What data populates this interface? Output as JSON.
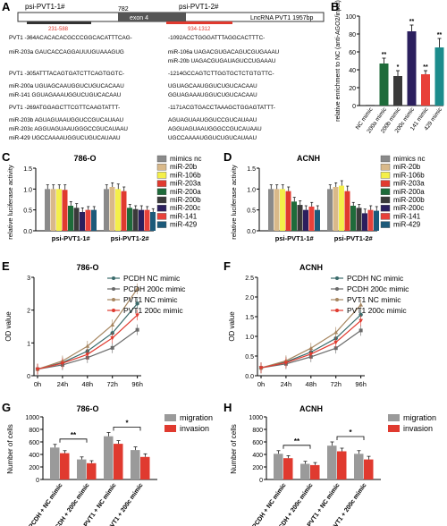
{
  "panels": {
    "A": "A",
    "B": "B",
    "C": "C",
    "D": "D",
    "E": "E",
    "F": "F",
    "G": "G",
    "H": "H"
  },
  "panelA": {
    "pos_labels": {
      "p1": "psi-PVT1-1#",
      "p2": "psi-PVT1-2#"
    },
    "numbers": {
      "n782": "782",
      "n1082": "1082",
      "exon": "exon 4",
      "lnc": "LncRNA PVT1 1957bp",
      "r1": "231-588",
      "r2": "934-1312"
    },
    "rows": [
      {
        "left": "PVT1  -364ACACACACGCCCGGCACATTTCAG-",
        "right": "-1092ACCTGGGATTTAGGCACTTTC-"
      },
      {
        "left": "miR-203a   GAUCACCAGGAUUUGUAAAGUG",
        "right": "miR-106a  UAGACGUGACAGUCGUGAAAU"
      },
      {
        "left": "",
        "right": "miR-20b   UAGACGUGAUAGUCCUGAAAU"
      },
      {
        "left": "PVT1  -305ATTTACAGTGATCTTCAGTGGTC-",
        "right": "-1214GCCAGTCTTGGTGCTCTGTGTTC-"
      },
      {
        "left": "miR-200a   UGUAGCAAUGGUCUGUCACAAU",
        "right": "UGUAGCAAUGGUCUGUCACAAU"
      },
      {
        "left": "miR-141    GGUAGAAAUGGUCUGUCACAAU",
        "right": "GGUAGAAAUGGUCUGUCACAAU"
      },
      {
        "left": "PVT1  -269ATGGAGCTTCGTTCAAGTATTT-",
        "right": "-1171ACGTGACCTAAAGCTGGAGTATTT-"
      },
      {
        "left": "miR-203b   AGUAGUAAUGGUCCGUCAUAAU",
        "right": "AGUAGUAAUGGUCCGUCAUAAU"
      },
      {
        "left": "miR-203c   AGGUAGUAAUGGGCCGUCAUAAU",
        "right": "AGGUAGUAAUGGGCCGUCAUAAU"
      },
      {
        "left": "miR-429    UGCCAAAAUGGUCUGUCAUAAU",
        "right": "UGCCAAAAUGGUCUGUCAUAAU"
      }
    ]
  },
  "chart_data": [
    {
      "id": "B",
      "type": "bar",
      "ylabel": "relative enrichment to NC (anti-AGO2/input)",
      "ylim": [
        0,
        100
      ],
      "yticks": [
        0,
        20,
        40,
        60,
        80,
        100
      ],
      "categories": [
        "NC mimic",
        "200a mimic",
        "200b mimic",
        "200c mimic",
        "141 mimic",
        "429 mimic"
      ],
      "values": [
        1,
        47,
        33,
        83,
        35,
        65
      ],
      "errors": [
        0,
        6,
        6,
        7,
        4,
        10
      ],
      "sig": [
        "",
        "**",
        "*",
        "**",
        "**",
        "**"
      ],
      "colors": [
        "#6b6b6b",
        "#1e6b3a",
        "#3a3a3a",
        "#2b1f5e",
        "#e8413a",
        "#1c8c8c"
      ]
    },
    {
      "id": "C",
      "type": "bar",
      "title": "786-O",
      "ylabel": "relative luciferase activity",
      "ylim": [
        0,
        1.5
      ],
      "yticks": [
        "0.0",
        "0.5",
        "1.0",
        "1.5"
      ],
      "groups": [
        "psi-PVT1-1#",
        "psi-PVT1-2#"
      ],
      "series": [
        {
          "name": "mimics nc",
          "color": "#8a8a8a",
          "values": [
            1.0,
            1.0
          ],
          "errors": [
            0.1,
            0.1
          ]
        },
        {
          "name": "miR-20b",
          "color": "#d9b98a",
          "values": [
            1.0,
            1.05
          ],
          "errors": [
            0.1,
            0.1
          ]
        },
        {
          "name": "miR-106b",
          "color": "#f4ef4a",
          "values": [
            1.0,
            1.0
          ],
          "errors": [
            0.1,
            0.12
          ]
        },
        {
          "name": "miR-203a",
          "color": "#e03a2f",
          "values": [
            0.98,
            0.95
          ],
          "errors": [
            0.12,
            0.1
          ]
        },
        {
          "name": "miR-200a",
          "color": "#1e6b3a",
          "values": [
            0.6,
            0.55
          ],
          "errors": [
            0.1,
            0.08
          ]
        },
        {
          "name": "miR-200b",
          "color": "#3a3a3a",
          "values": [
            0.55,
            0.52
          ],
          "errors": [
            0.1,
            0.08
          ]
        },
        {
          "name": "miR-200c",
          "color": "#2b1f5e",
          "values": [
            0.45,
            0.5
          ],
          "errors": [
            0.1,
            0.1
          ]
        },
        {
          "name": "miR-141",
          "color": "#e8413a",
          "values": [
            0.5,
            0.5
          ],
          "errors": [
            0.08,
            0.08
          ]
        },
        {
          "name": "miR-429",
          "color": "#1c5a7a",
          "values": [
            0.5,
            0.45
          ],
          "errors": [
            0.08,
            0.08
          ]
        }
      ]
    },
    {
      "id": "D",
      "type": "bar",
      "title": "ACNH",
      "ylabel": "relative luciferase activity",
      "ylim": [
        0,
        1.5
      ],
      "yticks": [
        "0.0",
        "0.5",
        "1.0",
        "1.5"
      ],
      "groups": [
        "psi-PVT1-1#",
        "psi-PVT1-2#"
      ],
      "series": [
        {
          "name": "mimics nc",
          "color": "#8a8a8a",
          "values": [
            1.0,
            1.0
          ],
          "errors": [
            0.1,
            0.1
          ]
        },
        {
          "name": "miR-20b",
          "color": "#d9b98a",
          "values": [
            1.0,
            1.05
          ],
          "errors": [
            0.1,
            0.1
          ]
        },
        {
          "name": "miR-106b",
          "color": "#f4ef4a",
          "values": [
            1.0,
            1.08
          ],
          "errors": [
            0.1,
            0.12
          ]
        },
        {
          "name": "miR-203a",
          "color": "#e03a2f",
          "values": [
            0.95,
            0.95
          ],
          "errors": [
            0.1,
            0.12
          ]
        },
        {
          "name": "miR-200a",
          "color": "#1e6b3a",
          "values": [
            0.7,
            0.6
          ],
          "errors": [
            0.1,
            0.08
          ]
        },
        {
          "name": "miR-200b",
          "color": "#3a3a3a",
          "values": [
            0.62,
            0.55
          ],
          "errors": [
            0.1,
            0.08
          ]
        },
        {
          "name": "miR-200c",
          "color": "#2b1f5e",
          "values": [
            0.5,
            0.42
          ],
          "errors": [
            0.1,
            0.1
          ]
        },
        {
          "name": "miR-141",
          "color": "#e8413a",
          "values": [
            0.58,
            0.5
          ],
          "errors": [
            0.1,
            0.1
          ]
        },
        {
          "name": "miR-429",
          "color": "#1c5a7a",
          "values": [
            0.5,
            0.48
          ],
          "errors": [
            0.1,
            0.1
          ]
        }
      ]
    },
    {
      "id": "E",
      "type": "line",
      "title": "786-O",
      "ylabel": "OD value",
      "categories": [
        "0h",
        "24h",
        "48h",
        "72h",
        "96h"
      ],
      "ylim": [
        0,
        3
      ],
      "yticks": [
        0,
        1,
        2,
        3
      ],
      "series": [
        {
          "name": "PCDH NC mimic",
          "color": "#3a6b6b",
          "marker": "circle",
          "values": [
            0.2,
            0.4,
            0.75,
            1.3,
            2.2
          ]
        },
        {
          "name": "PCDH 200c mimic",
          "color": "#6a6a6a",
          "marker": "square",
          "values": [
            0.2,
            0.33,
            0.55,
            0.85,
            1.4
          ]
        },
        {
          "name": "PVT1 NC mimic",
          "color": "#a68660",
          "marker": "triangle",
          "values": [
            0.2,
            0.45,
            0.9,
            1.55,
            2.65
          ]
        },
        {
          "name": "PVT1 200c mimic",
          "color": "#e03a2f",
          "marker": "triangle-down",
          "values": [
            0.2,
            0.38,
            0.65,
            1.15,
            1.85
          ]
        }
      ]
    },
    {
      "id": "F",
      "type": "line",
      "title": "ACNH",
      "ylabel": "OD value",
      "categories": [
        "0h",
        "24h",
        "48h",
        "72h",
        "96h"
      ],
      "ylim": [
        0,
        2.5
      ],
      "yticks": [
        "0.0",
        "0.5",
        "1.0",
        "1.5",
        "2.0",
        "2.5"
      ],
      "series": [
        {
          "name": "PCDH NC mimic",
          "color": "#3a6b6b",
          "marker": "circle",
          "values": [
            0.2,
            0.35,
            0.6,
            0.95,
            1.55
          ]
        },
        {
          "name": "PCDH 200c mimic",
          "color": "#6a6a6a",
          "marker": "square",
          "values": [
            0.2,
            0.3,
            0.48,
            0.7,
            1.15
          ]
        },
        {
          "name": "PVT1 NC mimic",
          "color": "#a68660",
          "marker": "triangle",
          "values": [
            0.2,
            0.38,
            0.7,
            1.1,
            1.8
          ]
        },
        {
          "name": "PVT1 200c mimic",
          "color": "#e03a2f",
          "marker": "triangle-down",
          "values": [
            0.2,
            0.33,
            0.55,
            0.85,
            1.4
          ]
        }
      ]
    },
    {
      "id": "G",
      "type": "bar",
      "title": "786-O",
      "ylabel": "Number of cells",
      "ylim": [
        0,
        1000
      ],
      "yticks": [
        0,
        200,
        400,
        600,
        800,
        1000
      ],
      "categories": [
        "PCDH + NC mimic",
        "PCDH + 200c mimic",
        "PVT1 + NC mimic",
        "PVT1 + 200c mimic"
      ],
      "series": [
        {
          "name": "migration",
          "color": "#9a9a9a",
          "values": [
            510,
            320,
            690,
            470
          ],
          "errors": [
            50,
            40,
            60,
            50
          ]
        },
        {
          "name": "invasion",
          "color": "#e03a2f",
          "values": [
            420,
            260,
            570,
            360
          ],
          "errors": [
            40,
            40,
            50,
            50
          ]
        }
      ],
      "sig": [
        "**",
        "*"
      ]
    },
    {
      "id": "H",
      "type": "bar",
      "title": "ACNH",
      "ylabel": "Number of cells",
      "ylim": [
        0,
        1000
      ],
      "yticks": [
        0,
        200,
        400,
        600,
        800,
        1000
      ],
      "categories": [
        "PCDH + NC mimic",
        "PCDH + 200c mimic",
        "PVT1 + NC mimic",
        "PVT1 + 200c mimic"
      ],
      "series": [
        {
          "name": "migration",
          "color": "#9a9a9a",
          "values": [
            410,
            250,
            540,
            410
          ],
          "errors": [
            50,
            40,
            60,
            50
          ]
        },
        {
          "name": "invasion",
          "color": "#e03a2f",
          "values": [
            340,
            230,
            450,
            320
          ],
          "errors": [
            40,
            40,
            50,
            50
          ]
        }
      ],
      "sig": [
        "**",
        "*"
      ]
    }
  ]
}
